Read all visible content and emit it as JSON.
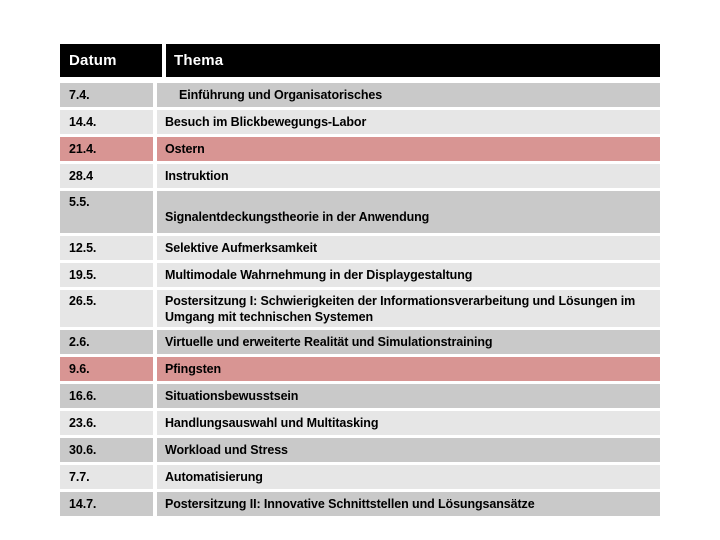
{
  "colors": {
    "header_bg": "#000000",
    "header_text": "#ffffff",
    "row_dark": "#c9c9c9",
    "row_light": "#e6e6e6",
    "row_highlight_pink": "#d89593",
    "body_text": "#000000",
    "page_bg": "#ffffff"
  },
  "table": {
    "header": {
      "datum": "Datum",
      "thema": "Thema"
    },
    "rows": [
      {
        "datum": "7.4.",
        "thema": "Einführung und Organisatorisches",
        "shade": "dark",
        "highlight": false,
        "tall": "",
        "indent": true
      },
      {
        "datum": "14.4.",
        "thema": "Besuch im Blickbewegungs-Labor",
        "shade": "light",
        "highlight": false,
        "tall": "",
        "indent": false
      },
      {
        "datum": "21.4.",
        "thema": "Ostern",
        "shade": "pink",
        "highlight": true,
        "tall": "",
        "indent": false
      },
      {
        "datum": "28.4",
        "thema": "Instruktion",
        "shade": "light",
        "highlight": false,
        "tall": "",
        "indent": false
      },
      {
        "datum": "5.5.",
        "thema": "Signalentdeckungstheorie in der Anwendung",
        "shade": "dark",
        "highlight": false,
        "tall": "a",
        "indent": false
      },
      {
        "datum": "12.5.",
        "thema": "Selektive Aufmerksamkeit",
        "shade": "light",
        "highlight": false,
        "tall": "",
        "indent": false
      },
      {
        "datum": "19.5.",
        "thema": "Multimodale Wahrnehmung in der Displaygestaltung",
        "shade": "light",
        "highlight": false,
        "tall": "",
        "indent": false
      },
      {
        "datum": "26.5.",
        "thema": "Postersitzung I: Schwierigkeiten der Informationsverarbeitung und Lösungen im Umgang mit technischen Systemen",
        "shade": "light",
        "highlight": false,
        "tall": "b",
        "indent": false
      },
      {
        "datum": "2.6.",
        "thema": "Virtuelle und erweiterte Realität und Simulationstraining",
        "shade": "dark",
        "highlight": false,
        "tall": "",
        "indent": false
      },
      {
        "datum": "9.6.",
        "thema": "Pfingsten",
        "shade": "pink",
        "highlight": true,
        "tall": "",
        "indent": false
      },
      {
        "datum": "16.6.",
        "thema": "Situationsbewusstsein",
        "shade": "dark",
        "highlight": false,
        "tall": "",
        "indent": false
      },
      {
        "datum": "23.6.",
        "thema": "Handlungsauswahl und Multitasking",
        "shade": "light",
        "highlight": false,
        "tall": "",
        "indent": false
      },
      {
        "datum": "30.6.",
        "thema": "Workload und Stress",
        "shade": "dark",
        "highlight": false,
        "tall": "",
        "indent": false
      },
      {
        "datum": "7.7.",
        "thema": "Automatisierung",
        "shade": "light",
        "highlight": false,
        "tall": "",
        "indent": false
      },
      {
        "datum": "14.7.",
        "thema": "Postersitzung II: Innovative Schnittstellen und Lösungsansätze",
        "shade": "dark",
        "highlight": false,
        "tall": "",
        "indent": false
      }
    ]
  }
}
